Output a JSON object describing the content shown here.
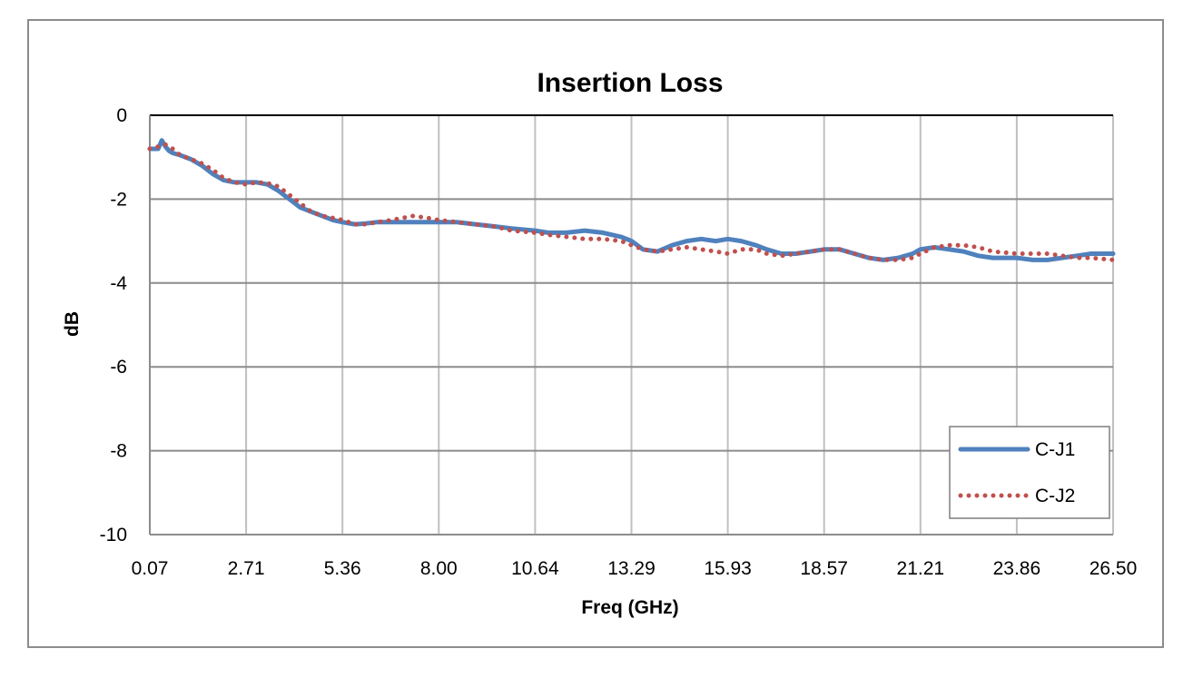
{
  "chart_data": {
    "type": "line",
    "title": "Insertion Loss",
    "xlabel": "Freq (GHz)",
    "ylabel": "dB",
    "x_ticks": [
      "0.07",
      "2.71",
      "5.36",
      "8.00",
      "10.64",
      "13.29",
      "15.93",
      "18.57",
      "21.21",
      "23.86",
      "26.50"
    ],
    "y_ticks": [
      "0",
      "-2",
      "-4",
      "-6",
      "-8",
      "-10"
    ],
    "xlim": [
      0.07,
      26.5
    ],
    "ylim": [
      -10,
      0
    ],
    "grid": true,
    "legend_position": "bottom-right",
    "series": [
      {
        "name": "C-J1",
        "color": "#4F81BD",
        "style": "solid",
        "x": [
          0.07,
          0.3,
          0.4,
          0.5,
          0.6,
          0.7,
          0.9,
          1.2,
          1.5,
          1.8,
          2.1,
          2.4,
          2.71,
          3.0,
          3.3,
          3.6,
          3.9,
          4.2,
          4.5,
          4.8,
          5.1,
          5.36,
          5.7,
          6.0,
          6.3,
          6.7,
          7.0,
          7.3,
          7.7,
          8.0,
          8.5,
          9.0,
          9.5,
          10.0,
          10.64,
          11.0,
          11.5,
          12.0,
          12.5,
          13.0,
          13.29,
          13.6,
          14.0,
          14.4,
          14.8,
          15.2,
          15.6,
          15.93,
          16.3,
          16.7,
          17.0,
          17.4,
          17.8,
          18.2,
          18.57,
          19.0,
          19.4,
          19.8,
          20.2,
          20.6,
          21.0,
          21.21,
          21.6,
          22.0,
          22.4,
          22.8,
          23.2,
          23.86,
          24.3,
          24.7,
          25.1,
          25.5,
          25.9,
          26.5
        ],
        "y": [
          -0.8,
          -0.8,
          -0.6,
          -0.75,
          -0.85,
          -0.9,
          -0.95,
          -1.05,
          -1.2,
          -1.4,
          -1.55,
          -1.6,
          -1.6,
          -1.6,
          -1.65,
          -1.8,
          -2.0,
          -2.2,
          -2.3,
          -2.4,
          -2.5,
          -2.55,
          -2.6,
          -2.58,
          -2.55,
          -2.55,
          -2.55,
          -2.55,
          -2.55,
          -2.55,
          -2.55,
          -2.6,
          -2.65,
          -2.7,
          -2.75,
          -2.8,
          -2.8,
          -2.75,
          -2.8,
          -2.9,
          -3.0,
          -3.2,
          -3.25,
          -3.1,
          -3.0,
          -2.95,
          -3.0,
          -2.95,
          -3.0,
          -3.1,
          -3.2,
          -3.3,
          -3.3,
          -3.25,
          -3.2,
          -3.2,
          -3.3,
          -3.4,
          -3.45,
          -3.4,
          -3.3,
          -3.2,
          -3.15,
          -3.2,
          -3.25,
          -3.35,
          -3.4,
          -3.4,
          -3.45,
          -3.45,
          -3.4,
          -3.35,
          -3.3,
          -3.3
        ]
      },
      {
        "name": "C-J2",
        "color": "#C0504D",
        "style": "dotted",
        "x": [
          0.07,
          0.3,
          0.5,
          0.7,
          0.9,
          1.2,
          1.5,
          1.8,
          2.1,
          2.4,
          2.71,
          3.0,
          3.3,
          3.6,
          3.9,
          4.2,
          4.5,
          4.8,
          5.1,
          5.36,
          5.7,
          6.0,
          6.3,
          6.7,
          7.0,
          7.3,
          7.7,
          8.0,
          8.5,
          9.0,
          9.5,
          10.0,
          10.64,
          11.0,
          11.5,
          12.0,
          12.5,
          13.0,
          13.29,
          13.6,
          14.0,
          14.4,
          14.8,
          15.2,
          15.6,
          15.93,
          16.3,
          16.7,
          17.0,
          17.4,
          17.8,
          18.2,
          18.57,
          19.0,
          19.4,
          19.8,
          20.2,
          20.6,
          21.0,
          21.21,
          21.6,
          22.0,
          22.4,
          22.8,
          23.2,
          23.86,
          24.3,
          24.7,
          25.1,
          25.5,
          25.9,
          26.5
        ],
        "y": [
          -0.8,
          -0.75,
          -0.7,
          -0.8,
          -0.95,
          -1.05,
          -1.15,
          -1.3,
          -1.5,
          -1.6,
          -1.65,
          -1.6,
          -1.62,
          -1.7,
          -1.9,
          -2.1,
          -2.3,
          -2.4,
          -2.45,
          -2.5,
          -2.6,
          -2.6,
          -2.55,
          -2.5,
          -2.45,
          -2.4,
          -2.45,
          -2.5,
          -2.55,
          -2.6,
          -2.65,
          -2.75,
          -2.8,
          -2.85,
          -2.9,
          -2.95,
          -2.95,
          -3.0,
          -3.1,
          -3.2,
          -3.25,
          -3.2,
          -3.15,
          -3.2,
          -3.25,
          -3.3,
          -3.2,
          -3.2,
          -3.3,
          -3.35,
          -3.3,
          -3.25,
          -3.2,
          -3.2,
          -3.3,
          -3.4,
          -3.45,
          -3.45,
          -3.4,
          -3.3,
          -3.15,
          -3.1,
          -3.1,
          -3.15,
          -3.25,
          -3.3,
          -3.3,
          -3.3,
          -3.35,
          -3.4,
          -3.4,
          -3.45
        ]
      }
    ]
  }
}
